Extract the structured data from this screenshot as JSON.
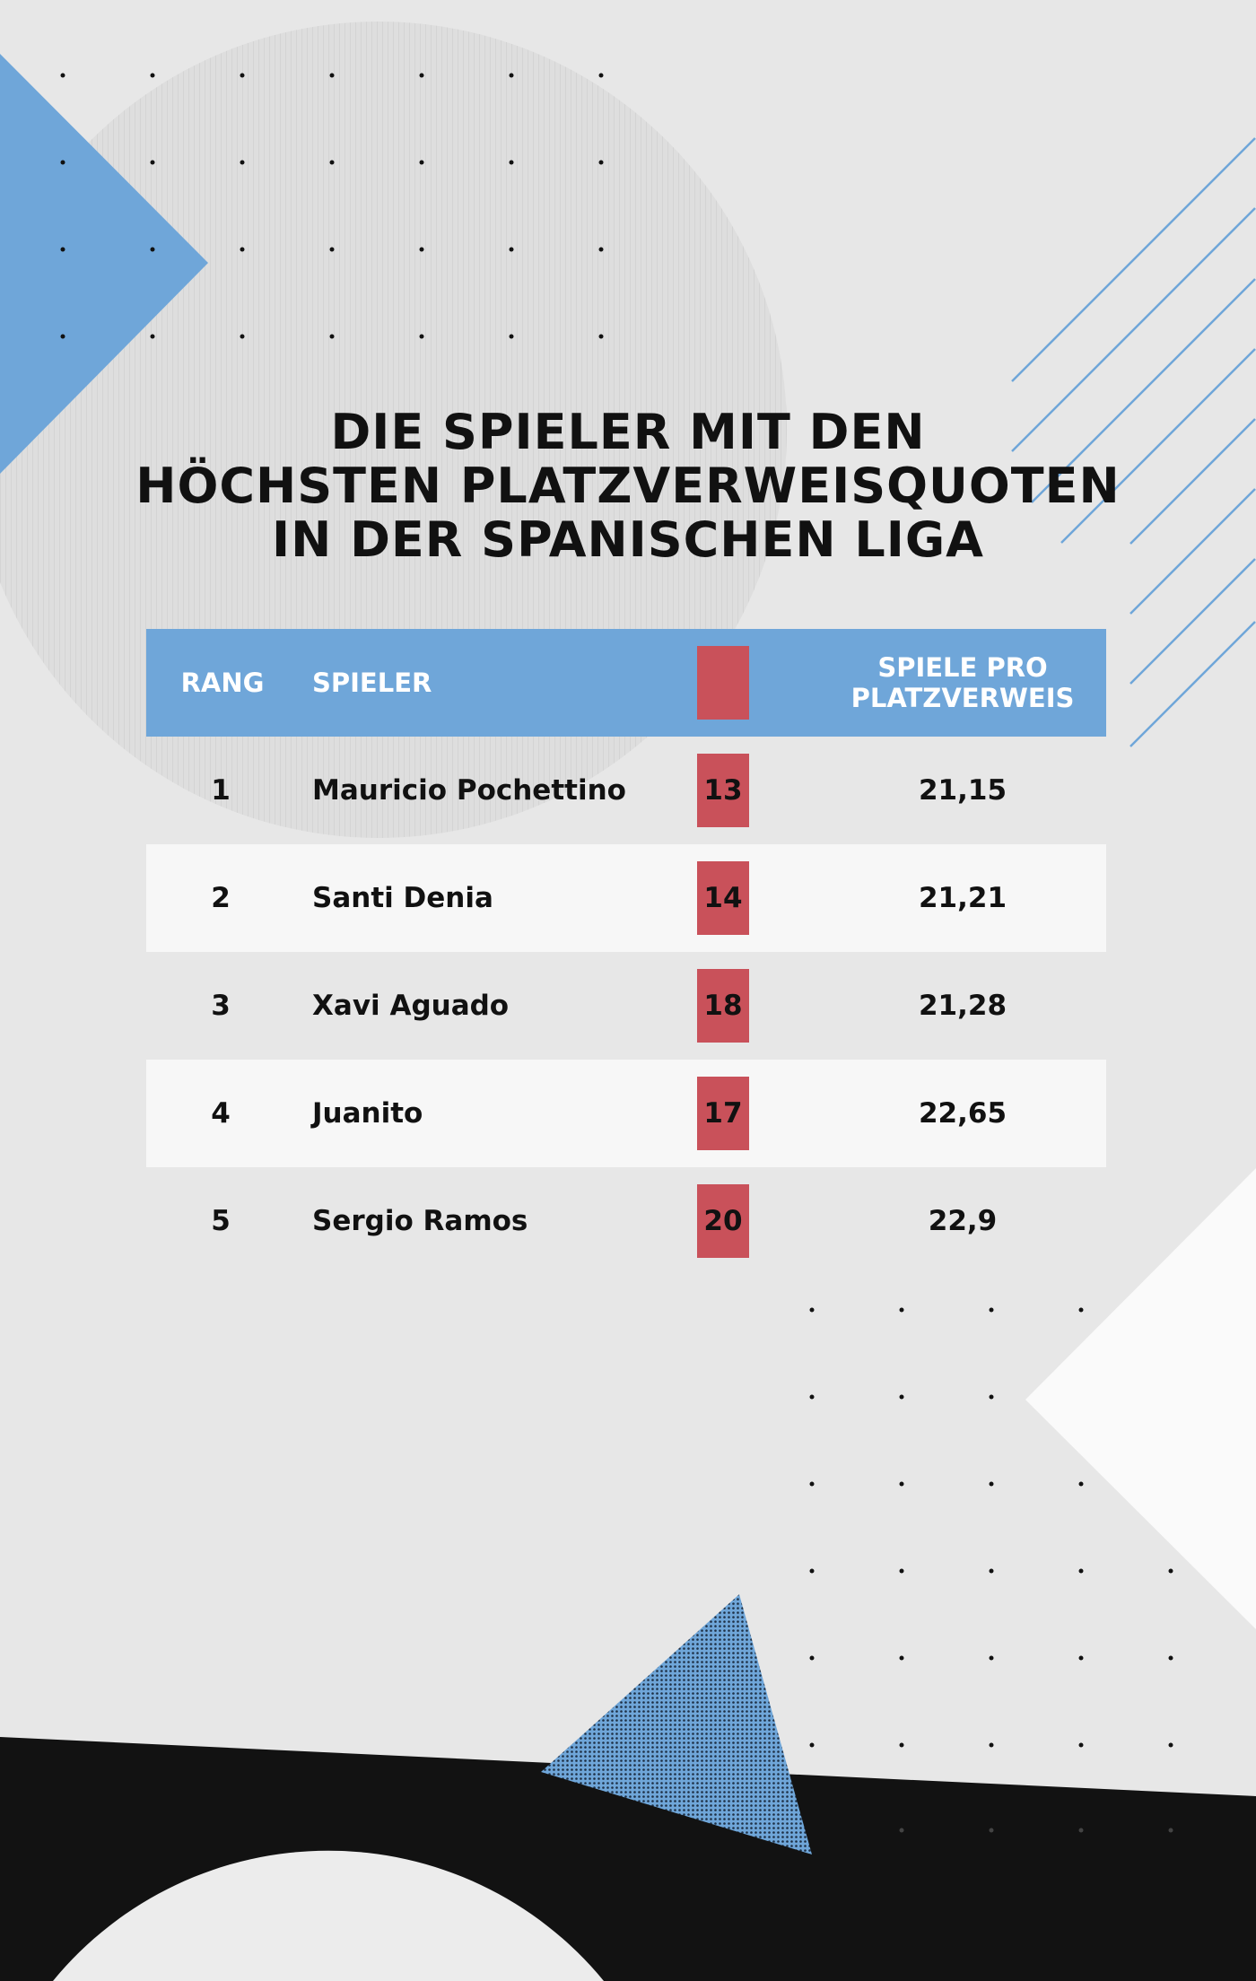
{
  "title": {
    "lines": [
      "DIE SPIELER MIT DEN",
      "HÖCHSTEN PLATZVERWEISQUOTEN",
      "IN DER SPANISCHEN LIGA"
    ]
  },
  "table": {
    "headers": {
      "rank": "RANG",
      "player": "SPIELER",
      "red_cards": "",
      "ratio_line1": "SPIELE PRO",
      "ratio_line2": "PLATZVERWEIS"
    },
    "rows": [
      {
        "rank": "1",
        "player": "Mauricio Pochettino",
        "red_cards": "13",
        "ratio": "21,15"
      },
      {
        "rank": "2",
        "player": "Santi Denia",
        "red_cards": "14",
        "ratio": "21,21"
      },
      {
        "rank": "3",
        "player": "Xavi Aguado",
        "red_cards": "18",
        "ratio": "21,28"
      },
      {
        "rank": "4",
        "player": "Juanito",
        "red_cards": "17",
        "ratio": "22,65"
      },
      {
        "rank": "5",
        "player": "Sergio Ramos",
        "red_cards": "20",
        "ratio": "22,9"
      }
    ]
  },
  "colors": {
    "header_blue": "#6fa6d9",
    "card_red": "#c9515a",
    "black": "#121212"
  }
}
